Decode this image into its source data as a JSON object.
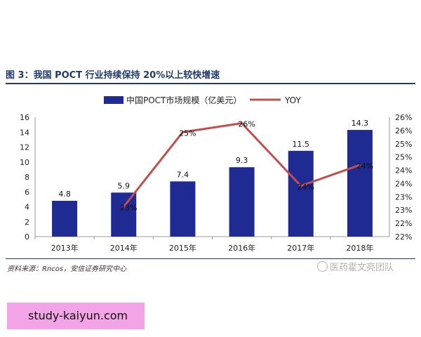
{
  "figure": {
    "title": "图 3：我国 POCT 行业持续保持 20%以上较快增速",
    "source": "资料来源：Rncos，安信证券研究中心",
    "watermark": "医药霍文亮团队",
    "site": "study-kaiyun.com"
  },
  "chart_data": {
    "type": "bar",
    "categories": [
      "2013年",
      "2014年",
      "2015年",
      "2016年",
      "2017年",
      "2018年"
    ],
    "series": [
      {
        "name": "中国POCT市场规模（亿美元）",
        "type": "bar",
        "axis": "left",
        "values": [
          4.8,
          5.9,
          7.4,
          9.3,
          11.5,
          14.3
        ],
        "labels": [
          "4.8",
          "5.9",
          "7.4",
          "9.3",
          "11.5",
          "14.3"
        ],
        "color": "#1f2a93"
      },
      {
        "name": "YOY",
        "type": "line",
        "axis": "right",
        "values": [
          null,
          23.0,
          25.5,
          25.8,
          23.7,
          24.4
        ],
        "labels": [
          "",
          "23%",
          "25%",
          "26%",
          "24%",
          "24%"
        ],
        "color": "#c0504d"
      }
    ],
    "ylim": [
      0,
      16
    ],
    "yticks": [
      "0",
      "2",
      "4",
      "6",
      "8",
      "10",
      "12",
      "14",
      "16"
    ],
    "y2lim": [
      22,
      26
    ],
    "y2ticks": [
      "22%",
      "22%",
      "23%",
      "23%",
      "24%",
      "24%",
      "25%",
      "25%",
      "26%",
      "26%"
    ],
    "legend_position": "top",
    "grid": false
  }
}
